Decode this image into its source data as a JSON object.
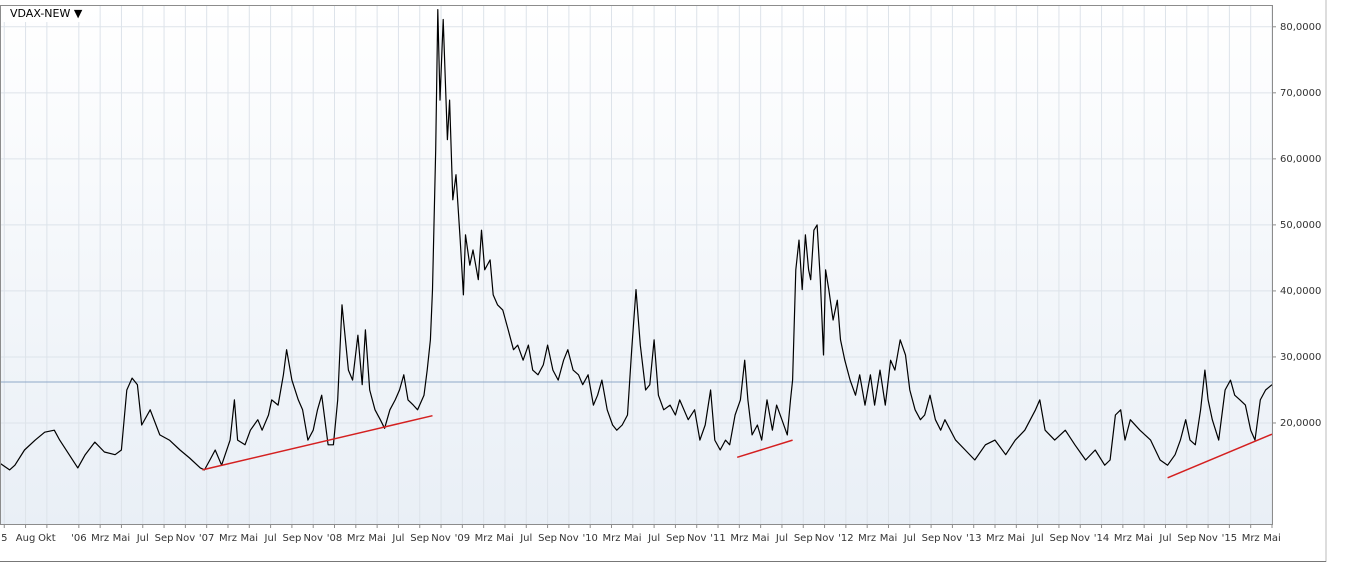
{
  "chart_data": {
    "type": "line",
    "title": "VDAX-NEW ▼",
    "xlim": [
      -7.4,
      112
    ],
    "ylim": [
      4.7,
      83.3
    ],
    "grid": true,
    "yticks": [
      {
        "value": 20,
        "label": "20,0000"
      },
      {
        "value": 30,
        "label": "30,0000"
      },
      {
        "value": 40,
        "label": "40,0000"
      },
      {
        "value": 50,
        "label": "50,0000"
      },
      {
        "value": 60,
        "label": "60,0000"
      },
      {
        "value": 70,
        "label": "70,0000"
      },
      {
        "value": 80,
        "label": "80,0000"
      }
    ],
    "xticks": [
      {
        "value": -7,
        "label": "5"
      },
      {
        "value": -5,
        "label": "Aug"
      },
      {
        "value": -3,
        "label": "Okt"
      },
      {
        "value": 0,
        "label": "'06"
      },
      {
        "value": 2,
        "label": "Mrz"
      },
      {
        "value": 4,
        "label": "Mai"
      },
      {
        "value": 6,
        "label": "Jul"
      },
      {
        "value": 8,
        "label": "Sep"
      },
      {
        "value": 10,
        "label": "Nov"
      },
      {
        "value": 12,
        "label": "'07"
      },
      {
        "value": 14,
        "label": "Mrz"
      },
      {
        "value": 16,
        "label": "Mai"
      },
      {
        "value": 18,
        "label": "Jul"
      },
      {
        "value": 20,
        "label": "Sep"
      },
      {
        "value": 22,
        "label": "Nov"
      },
      {
        "value": 24,
        "label": "'08"
      },
      {
        "value": 26,
        "label": "Mrz"
      },
      {
        "value": 28,
        "label": "Mai"
      },
      {
        "value": 30,
        "label": "Jul"
      },
      {
        "value": 32,
        "label": "Sep"
      },
      {
        "value": 34,
        "label": "Nov"
      },
      {
        "value": 36,
        "label": "'09"
      },
      {
        "value": 38,
        "label": "Mrz"
      },
      {
        "value": 40,
        "label": "Mai"
      },
      {
        "value": 42,
        "label": "Jul"
      },
      {
        "value": 44,
        "label": "Sep"
      },
      {
        "value": 46,
        "label": "Nov"
      },
      {
        "value": 48,
        "label": "'10"
      },
      {
        "value": 50,
        "label": "Mrz"
      },
      {
        "value": 52,
        "label": "Mai"
      },
      {
        "value": 54,
        "label": "Jul"
      },
      {
        "value": 56,
        "label": "Sep"
      },
      {
        "value": 58,
        "label": "Nov"
      },
      {
        "value": 60,
        "label": "'11"
      },
      {
        "value": 62,
        "label": "Mrz"
      },
      {
        "value": 64,
        "label": "Mai"
      },
      {
        "value": 66,
        "label": "Jul"
      },
      {
        "value": 68,
        "label": "Sep"
      },
      {
        "value": 70,
        "label": "Nov"
      },
      {
        "value": 72,
        "label": "'12"
      },
      {
        "value": 74,
        "label": "Mrz"
      },
      {
        "value": 76,
        "label": "Mai"
      },
      {
        "value": 78,
        "label": "Jul"
      },
      {
        "value": 80,
        "label": "Sep"
      },
      {
        "value": 82,
        "label": "Nov"
      },
      {
        "value": 84,
        "label": "'13"
      },
      {
        "value": 86,
        "label": "Mrz"
      },
      {
        "value": 88,
        "label": "Mai"
      },
      {
        "value": 90,
        "label": "Jul"
      },
      {
        "value": 92,
        "label": "Sep"
      },
      {
        "value": 94,
        "label": "Nov"
      },
      {
        "value": 96,
        "label": "'14"
      },
      {
        "value": 98,
        "label": "Mrz"
      },
      {
        "value": 100,
        "label": "Mai"
      },
      {
        "value": 102,
        "label": "Jul"
      },
      {
        "value": 104,
        "label": "Sep"
      },
      {
        "value": 106,
        "label": "Nov"
      },
      {
        "value": 108,
        "label": "'15"
      },
      {
        "value": 110,
        "label": "Mrz"
      },
      {
        "value": 112,
        "label": "Mai"
      }
    ],
    "series": [
      {
        "color": "#000000",
        "x": [
          -7.4,
          -6.5,
          -6.0,
          -5.1,
          -4.1,
          -3.2,
          -2.3,
          -1.8,
          -0.9,
          -0.1,
          0.6,
          1.5,
          2.4,
          3.4,
          4.0,
          4.5,
          5.0,
          5.5,
          5.9,
          6.7,
          7.6,
          8.5,
          9.5,
          10.4,
          11.4,
          11.8,
          12.3,
          12.8,
          13.4,
          14.2,
          14.6,
          14.9,
          15.6,
          16.1,
          16.8,
          17.2,
          17.8,
          18.1,
          18.7,
          19.2,
          19.5,
          20.0,
          20.6,
          21.0,
          21.5,
          22.0,
          22.4,
          22.8,
          23.4,
          23.9,
          24.3,
          24.7,
          25.3,
          25.7,
          26.2,
          26.6,
          26.9,
          27.3,
          27.8,
          28.3,
          28.7,
          29.2,
          29.7,
          30.1,
          30.5,
          30.9,
          31.4,
          31.8,
          32.4,
          32.7,
          33.0,
          33.2,
          33.5,
          33.7,
          33.9,
          34.2,
          34.6,
          34.8,
          35.1,
          35.4,
          35.8,
          36.1,
          36.3,
          36.7,
          37.0,
          37.5,
          37.8,
          38.1,
          38.6,
          38.9,
          39.3,
          39.8,
          40.3,
          40.8,
          41.2,
          41.7,
          42.2,
          42.6,
          43.1,
          43.6,
          44.0,
          44.5,
          45.0,
          45.5,
          45.9,
          46.4,
          46.9,
          47.3,
          47.8,
          48.3,
          48.7,
          49.1,
          49.6,
          50.1,
          50.5,
          51.0,
          51.5,
          51.9,
          52.3,
          52.7,
          53.2,
          53.6,
          54.0,
          54.4,
          54.9,
          55.5,
          56.0,
          56.4,
          57.2,
          57.8,
          58.3,
          58.8,
          59.3,
          59.7,
          60.2,
          60.7,
          61.1,
          61.6,
          62.1,
          62.5,
          62.8,
          63.2,
          63.7,
          64.1,
          64.6,
          65.1,
          65.5,
          66.0,
          66.5,
          66.8,
          67.0,
          67.3,
          67.6,
          67.9,
          68.2,
          68.5,
          68.7,
          69.0,
          69.3,
          69.6,
          69.9,
          70.1,
          70.4,
          70.8,
          71.2,
          71.5,
          71.9,
          72.4,
          72.9,
          73.3,
          73.8,
          74.3,
          74.7,
          75.2,
          75.7,
          76.2,
          76.6,
          77.1,
          77.6,
          78.0,
          78.5,
          79.0,
          79.4,
          79.9,
          80.4,
          80.9,
          81.3,
          82.3,
          83.2,
          84.1,
          85.1,
          86.0,
          87.0,
          87.9,
          88.8,
          89.8,
          90.2,
          90.7,
          91.6,
          92.6,
          93.5,
          94.5,
          95.4,
          96.3,
          96.8,
          97.3,
          97.8,
          98.2,
          98.7,
          99.6,
          100.6,
          101.5,
          102.2,
          102.9,
          103.4,
          103.9,
          104.3,
          104.8,
          105.3,
          105.7,
          106.0,
          106.4,
          107.0,
          107.6,
          108.1,
          108.5,
          109.0,
          109.5,
          110.0,
          110.4,
          110.9,
          111.4,
          112.0
        ],
        "values": [
          13.9,
          12.9,
          13.6,
          15.9,
          17.4,
          18.6,
          18.9,
          17.4,
          15.2,
          13.2,
          15.2,
          17.1,
          15.6,
          15.2,
          15.9,
          25.0,
          26.8,
          25.8,
          19.7,
          22.0,
          18.2,
          17.4,
          15.9,
          14.7,
          13.2,
          12.9,
          14.4,
          15.9,
          13.6,
          17.4,
          23.5,
          17.4,
          16.7,
          18.9,
          20.5,
          18.9,
          21.2,
          23.5,
          22.7,
          27.3,
          31.1,
          26.5,
          23.5,
          22.0,
          17.4,
          18.9,
          22.0,
          24.2,
          16.7,
          16.7,
          23.5,
          37.9,
          28.0,
          26.5,
          33.3,
          25.8,
          34.1,
          25.0,
          22.0,
          20.5,
          19.2,
          22.0,
          23.5,
          25.0,
          27.3,
          23.5,
          22.7,
          22.0,
          24.2,
          28.0,
          32.6,
          40.2,
          61.4,
          82.6,
          68.9,
          81.1,
          62.9,
          68.9,
          53.8,
          57.6,
          47.7,
          39.4,
          48.5,
          43.9,
          46.2,
          41.7,
          49.2,
          43.2,
          44.7,
          39.4,
          37.9,
          37.1,
          34.1,
          31.1,
          31.8,
          29.5,
          31.8,
          28.0,
          27.3,
          28.8,
          31.8,
          28.0,
          26.5,
          29.5,
          31.1,
          28.0,
          27.3,
          25.8,
          27.3,
          22.7,
          24.2,
          26.5,
          22.0,
          19.7,
          18.9,
          19.7,
          21.2,
          31.1,
          40.2,
          31.8,
          25.0,
          25.8,
          32.6,
          24.2,
          22.0,
          22.7,
          21.2,
          23.5,
          20.5,
          22.0,
          17.4,
          19.7,
          25.0,
          17.4,
          15.9,
          17.4,
          16.7,
          21.2,
          23.5,
          29.5,
          23.5,
          18.2,
          19.7,
          17.4,
          23.5,
          18.9,
          22.7,
          20.5,
          18.2,
          23.5,
          26.5,
          43.2,
          47.7,
          40.2,
          48.5,
          43.2,
          41.7,
          49.2,
          50.0,
          41.7,
          30.3,
          43.2,
          40.2,
          35.6,
          38.6,
          32.6,
          29.5,
          26.5,
          24.2,
          27.3,
          22.7,
          27.3,
          22.7,
          28.0,
          22.7,
          29.5,
          28.0,
          32.6,
          30.3,
          25.0,
          22.0,
          20.5,
          21.2,
          24.2,
          20.5,
          18.9,
          20.5,
          17.4,
          15.9,
          14.4,
          16.7,
          17.4,
          15.2,
          17.4,
          18.9,
          22.0,
          23.5,
          18.9,
          17.4,
          18.9,
          16.7,
          14.4,
          15.9,
          13.6,
          14.4,
          21.2,
          22.0,
          17.4,
          20.5,
          18.9,
          17.4,
          14.4,
          13.6,
          15.2,
          17.4,
          20.5,
          17.4,
          16.7,
          22.0,
          28.0,
          23.5,
          20.5,
          17.4,
          25.0,
          26.5,
          24.2,
          23.5,
          22.7,
          18.9,
          17.4,
          23.5,
          25.0,
          25.8
        ]
      }
    ],
    "trendlines": [
      {
        "color": "#d42020",
        "x": [
          11.6,
          33.2
        ],
        "values": [
          12.9,
          21.1
        ]
      },
      {
        "color": "#d42020",
        "x": [
          61.8,
          67.0
        ],
        "values": [
          14.8,
          17.4
        ]
      },
      {
        "color": "#d42020",
        "x": [
          102.2,
          112.0
        ],
        "values": [
          11.7,
          18.3
        ]
      }
    ],
    "reference_line": {
      "value": 26.2,
      "color": "#8fa8c8"
    }
  }
}
